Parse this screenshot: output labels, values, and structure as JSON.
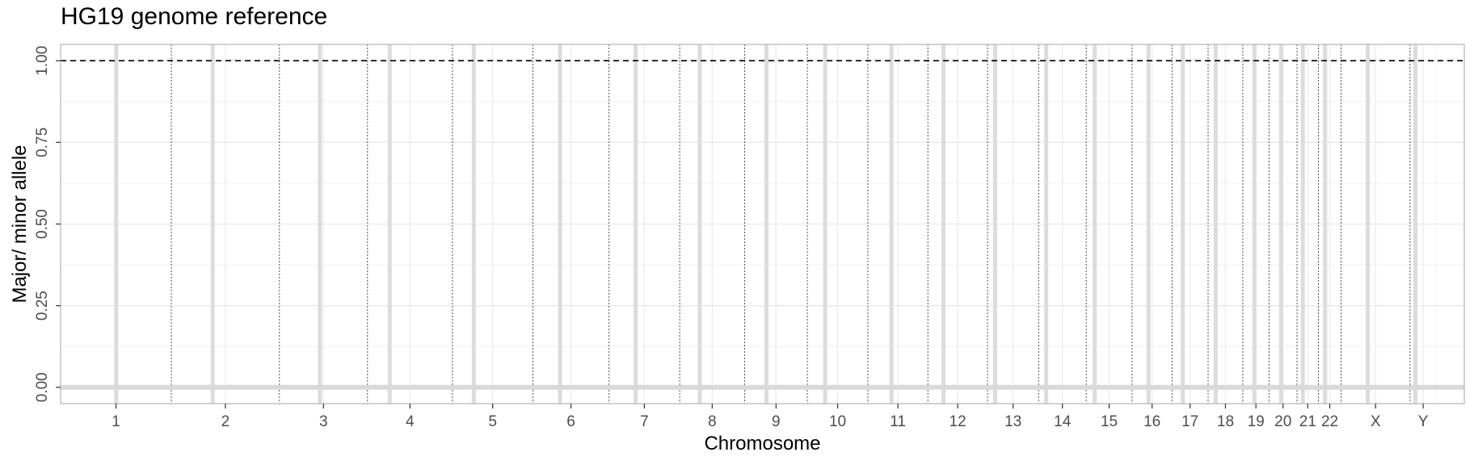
{
  "chart_data": {
    "type": "line",
    "title": "HG19 genome reference",
    "xlabel": "Chromosome",
    "ylabel": "Major/ minor allele",
    "ylim": [
      -0.05,
      1.05
    ],
    "y_ticks": [
      "0.00",
      "0.25",
      "0.50",
      "0.75",
      "1.00"
    ],
    "y_tick_values": [
      0,
      0.25,
      0.5,
      0.75,
      1.0
    ],
    "grid": true,
    "reference_line": {
      "y": 1.0,
      "style": "dashed"
    },
    "x_axis_unit": "Mb (cumulative hg19 position)",
    "xlim": [
      0,
      3156
    ],
    "chromosomes": [
      {
        "label": "1",
        "start": 0,
        "length": 249,
        "centromere": 125
      },
      {
        "label": "2",
        "start": 249,
        "length": 243,
        "centromere": 93
      },
      {
        "label": "3",
        "start": 492,
        "length": 198,
        "centromere": 91
      },
      {
        "label": "4",
        "start": 690,
        "length": 191,
        "centromere": 50
      },
      {
        "label": "5",
        "start": 881,
        "length": 181,
        "centromere": 48
      },
      {
        "label": "6",
        "start": 1062,
        "length": 171,
        "centromere": 61
      },
      {
        "label": "7",
        "start": 1233,
        "length": 159,
        "centromere": 60
      },
      {
        "label": "8",
        "start": 1392,
        "length": 146,
        "centromere": 45
      },
      {
        "label": "9",
        "start": 1538,
        "length": 141,
        "centromere": 49
      },
      {
        "label": "10",
        "start": 1679,
        "length": 136,
        "centromere": 40
      },
      {
        "label": "11",
        "start": 1815,
        "length": 135,
        "centromere": 53
      },
      {
        "label": "12",
        "start": 1950,
        "length": 134,
        "centromere": 35
      },
      {
        "label": "13",
        "start": 2084,
        "length": 115,
        "centromere": 17
      },
      {
        "label": "14",
        "start": 2199,
        "length": 107,
        "centromere": 17
      },
      {
        "label": "15",
        "start": 2306,
        "length": 103,
        "centromere": 19
      },
      {
        "label": "16",
        "start": 2409,
        "length": 90,
        "centromere": 37
      },
      {
        "label": "17",
        "start": 2499,
        "length": 81,
        "centromere": 24
      },
      {
        "label": "18",
        "start": 2580,
        "length": 78,
        "centromere": 17
      },
      {
        "label": "19",
        "start": 2658,
        "length": 59,
        "centromere": 26
      },
      {
        "label": "20",
        "start": 2717,
        "length": 63,
        "centromere": 27
      },
      {
        "label": "21",
        "start": 2780,
        "length": 48,
        "centromere": 13
      },
      {
        "label": "22",
        "start": 2828,
        "length": 51,
        "centromere": 15
      },
      {
        "label": "X",
        "start": 2879,
        "length": 155,
        "centromere": 60
      },
      {
        "label": "Y",
        "start": 3034,
        "length": 59,
        "centromere": 12
      }
    ],
    "series": [
      {
        "values": [
          0,
          0
        ]
      }
    ]
  }
}
